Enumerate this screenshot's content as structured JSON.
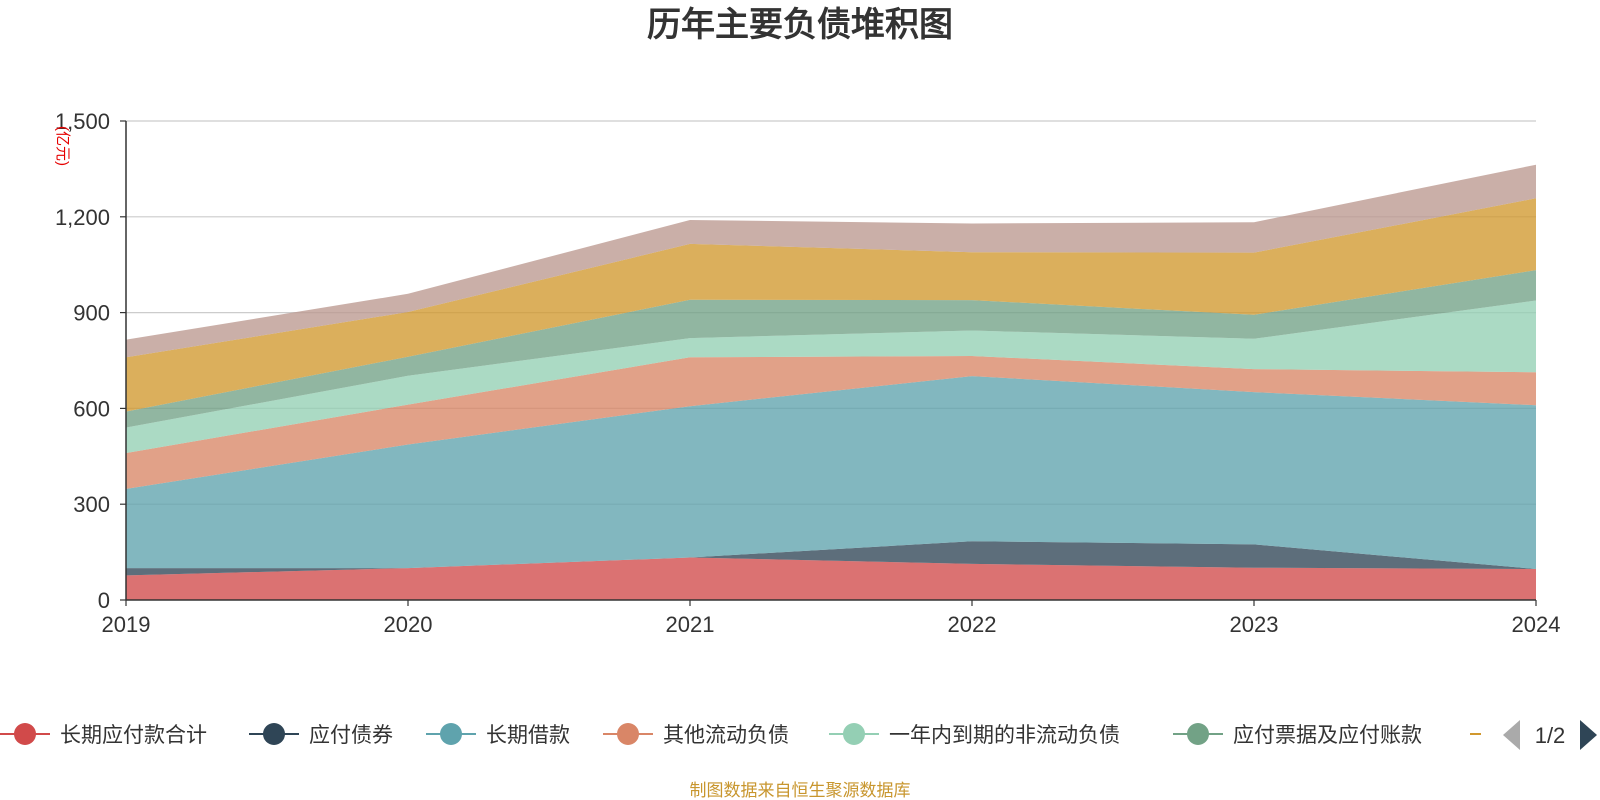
{
  "chart_data": {
    "type": "area",
    "stacked": true,
    "title": "历年主要负债堆积图",
    "unit_label": "(亿元)",
    "x": [
      "2019",
      "2020",
      "2021",
      "2022",
      "2023",
      "2024"
    ],
    "ylim": [
      0,
      1500
    ],
    "yticks": [
      "0",
      "300",
      "600",
      "900",
      "1,200",
      "1,500"
    ],
    "ytick_values": [
      0,
      300,
      600,
      900,
      1200,
      1500
    ],
    "grid": true,
    "series": [
      {
        "name": "长期应付款合计",
        "color": "#d14a4a",
        "values": [
          77,
          100,
          133,
          113,
          101,
          97
        ]
      },
      {
        "name": "应付债券",
        "color": "#2f4556",
        "values": [
          23,
          0,
          0,
          71,
          73,
          0
        ]
      },
      {
        "name": "长期借款",
        "color": "#5fa3ad",
        "values": [
          248,
          387,
          474,
          517,
          477,
          513
        ]
      },
      {
        "name": "其他流动负债",
        "color": "#d98667",
        "values": [
          112,
          125,
          153,
          63,
          72,
          103
        ]
      },
      {
        "name": "一年内到期的非流动负债",
        "color": "#94cfb4",
        "values": [
          80,
          90,
          60,
          80,
          95,
          225
        ]
      },
      {
        "name": "应付票据及应付账款",
        "color": "#72a286",
        "values": [
          50,
          60,
          120,
          95,
          75,
          95
        ]
      },
      {
        "name": "",
        "color": "#d1982e",
        "values": [
          170,
          140,
          175,
          150,
          195,
          225
        ]
      },
      {
        "name": "",
        "color": "#bb9990",
        "values": [
          55,
          57,
          75,
          90,
          95,
          105
        ]
      }
    ],
    "legend_position": "bottom",
    "legend_pager": "1/2",
    "source": "制图数据来自恒生聚源数据库"
  }
}
